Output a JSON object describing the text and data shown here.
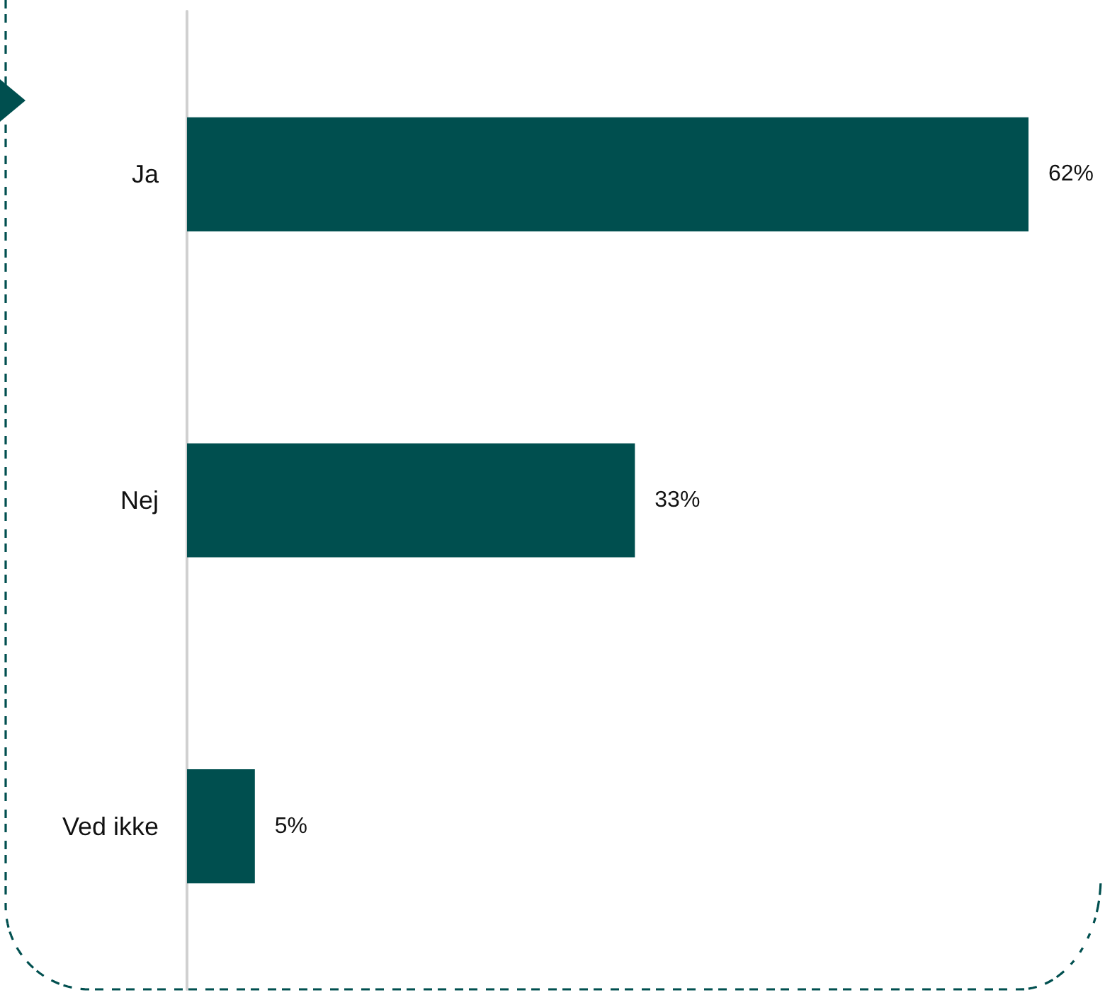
{
  "chart_data": {
    "type": "bar",
    "orientation": "horizontal",
    "categories": [
      "Ja",
      "Nej",
      "Ved ikke"
    ],
    "values": [
      62,
      33,
      5
    ],
    "value_labels": [
      "62%",
      "33%",
      "5%"
    ],
    "color": "#004f4f"
  }
}
